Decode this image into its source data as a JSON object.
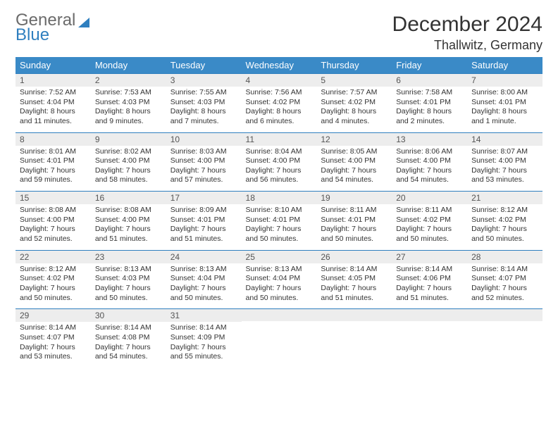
{
  "brand": {
    "word1": "General",
    "word2": "Blue"
  },
  "header": {
    "month_title": "December 2024",
    "location": "Thallwitz, Germany"
  },
  "colors": {
    "header_bg": "#3a8ac7",
    "header_text": "#ffffff",
    "daynum_bg": "#ededed",
    "rule": "#2f7fbf",
    "body_text": "#333333",
    "logo_grey": "#6b6b6b",
    "logo_blue": "#2f7fbf",
    "page_bg": "#ffffff"
  },
  "day_names": [
    "Sunday",
    "Monday",
    "Tuesday",
    "Wednesday",
    "Thursday",
    "Friday",
    "Saturday"
  ],
  "weeks": [
    [
      {
        "n": "1",
        "sr": "Sunrise: 7:52 AM",
        "ss": "Sunset: 4:04 PM",
        "dl1": "Daylight: 8 hours",
        "dl2": "and 11 minutes."
      },
      {
        "n": "2",
        "sr": "Sunrise: 7:53 AM",
        "ss": "Sunset: 4:03 PM",
        "dl1": "Daylight: 8 hours",
        "dl2": "and 9 minutes."
      },
      {
        "n": "3",
        "sr": "Sunrise: 7:55 AM",
        "ss": "Sunset: 4:03 PM",
        "dl1": "Daylight: 8 hours",
        "dl2": "and 7 minutes."
      },
      {
        "n": "4",
        "sr": "Sunrise: 7:56 AM",
        "ss": "Sunset: 4:02 PM",
        "dl1": "Daylight: 8 hours",
        "dl2": "and 6 minutes."
      },
      {
        "n": "5",
        "sr": "Sunrise: 7:57 AM",
        "ss": "Sunset: 4:02 PM",
        "dl1": "Daylight: 8 hours",
        "dl2": "and 4 minutes."
      },
      {
        "n": "6",
        "sr": "Sunrise: 7:58 AM",
        "ss": "Sunset: 4:01 PM",
        "dl1": "Daylight: 8 hours",
        "dl2": "and 2 minutes."
      },
      {
        "n": "7",
        "sr": "Sunrise: 8:00 AM",
        "ss": "Sunset: 4:01 PM",
        "dl1": "Daylight: 8 hours",
        "dl2": "and 1 minute."
      }
    ],
    [
      {
        "n": "8",
        "sr": "Sunrise: 8:01 AM",
        "ss": "Sunset: 4:01 PM",
        "dl1": "Daylight: 7 hours",
        "dl2": "and 59 minutes."
      },
      {
        "n": "9",
        "sr": "Sunrise: 8:02 AM",
        "ss": "Sunset: 4:00 PM",
        "dl1": "Daylight: 7 hours",
        "dl2": "and 58 minutes."
      },
      {
        "n": "10",
        "sr": "Sunrise: 8:03 AM",
        "ss": "Sunset: 4:00 PM",
        "dl1": "Daylight: 7 hours",
        "dl2": "and 57 minutes."
      },
      {
        "n": "11",
        "sr": "Sunrise: 8:04 AM",
        "ss": "Sunset: 4:00 PM",
        "dl1": "Daylight: 7 hours",
        "dl2": "and 56 minutes."
      },
      {
        "n": "12",
        "sr": "Sunrise: 8:05 AM",
        "ss": "Sunset: 4:00 PM",
        "dl1": "Daylight: 7 hours",
        "dl2": "and 54 minutes."
      },
      {
        "n": "13",
        "sr": "Sunrise: 8:06 AM",
        "ss": "Sunset: 4:00 PM",
        "dl1": "Daylight: 7 hours",
        "dl2": "and 54 minutes."
      },
      {
        "n": "14",
        "sr": "Sunrise: 8:07 AM",
        "ss": "Sunset: 4:00 PM",
        "dl1": "Daylight: 7 hours",
        "dl2": "and 53 minutes."
      }
    ],
    [
      {
        "n": "15",
        "sr": "Sunrise: 8:08 AM",
        "ss": "Sunset: 4:00 PM",
        "dl1": "Daylight: 7 hours",
        "dl2": "and 52 minutes."
      },
      {
        "n": "16",
        "sr": "Sunrise: 8:08 AM",
        "ss": "Sunset: 4:00 PM",
        "dl1": "Daylight: 7 hours",
        "dl2": "and 51 minutes."
      },
      {
        "n": "17",
        "sr": "Sunrise: 8:09 AM",
        "ss": "Sunset: 4:01 PM",
        "dl1": "Daylight: 7 hours",
        "dl2": "and 51 minutes."
      },
      {
        "n": "18",
        "sr": "Sunrise: 8:10 AM",
        "ss": "Sunset: 4:01 PM",
        "dl1": "Daylight: 7 hours",
        "dl2": "and 50 minutes."
      },
      {
        "n": "19",
        "sr": "Sunrise: 8:11 AM",
        "ss": "Sunset: 4:01 PM",
        "dl1": "Daylight: 7 hours",
        "dl2": "and 50 minutes."
      },
      {
        "n": "20",
        "sr": "Sunrise: 8:11 AM",
        "ss": "Sunset: 4:02 PM",
        "dl1": "Daylight: 7 hours",
        "dl2": "and 50 minutes."
      },
      {
        "n": "21",
        "sr": "Sunrise: 8:12 AM",
        "ss": "Sunset: 4:02 PM",
        "dl1": "Daylight: 7 hours",
        "dl2": "and 50 minutes."
      }
    ],
    [
      {
        "n": "22",
        "sr": "Sunrise: 8:12 AM",
        "ss": "Sunset: 4:02 PM",
        "dl1": "Daylight: 7 hours",
        "dl2": "and 50 minutes."
      },
      {
        "n": "23",
        "sr": "Sunrise: 8:13 AM",
        "ss": "Sunset: 4:03 PM",
        "dl1": "Daylight: 7 hours",
        "dl2": "and 50 minutes."
      },
      {
        "n": "24",
        "sr": "Sunrise: 8:13 AM",
        "ss": "Sunset: 4:04 PM",
        "dl1": "Daylight: 7 hours",
        "dl2": "and 50 minutes."
      },
      {
        "n": "25",
        "sr": "Sunrise: 8:13 AM",
        "ss": "Sunset: 4:04 PM",
        "dl1": "Daylight: 7 hours",
        "dl2": "and 50 minutes."
      },
      {
        "n": "26",
        "sr": "Sunrise: 8:14 AM",
        "ss": "Sunset: 4:05 PM",
        "dl1": "Daylight: 7 hours",
        "dl2": "and 51 minutes."
      },
      {
        "n": "27",
        "sr": "Sunrise: 8:14 AM",
        "ss": "Sunset: 4:06 PM",
        "dl1": "Daylight: 7 hours",
        "dl2": "and 51 minutes."
      },
      {
        "n": "28",
        "sr": "Sunrise: 8:14 AM",
        "ss": "Sunset: 4:07 PM",
        "dl1": "Daylight: 7 hours",
        "dl2": "and 52 minutes."
      }
    ],
    [
      {
        "n": "29",
        "sr": "Sunrise: 8:14 AM",
        "ss": "Sunset: 4:07 PM",
        "dl1": "Daylight: 7 hours",
        "dl2": "and 53 minutes."
      },
      {
        "n": "30",
        "sr": "Sunrise: 8:14 AM",
        "ss": "Sunset: 4:08 PM",
        "dl1": "Daylight: 7 hours",
        "dl2": "and 54 minutes."
      },
      {
        "n": "31",
        "sr": "Sunrise: 8:14 AM",
        "ss": "Sunset: 4:09 PM",
        "dl1": "Daylight: 7 hours",
        "dl2": "and 55 minutes."
      },
      null,
      null,
      null,
      null
    ]
  ]
}
